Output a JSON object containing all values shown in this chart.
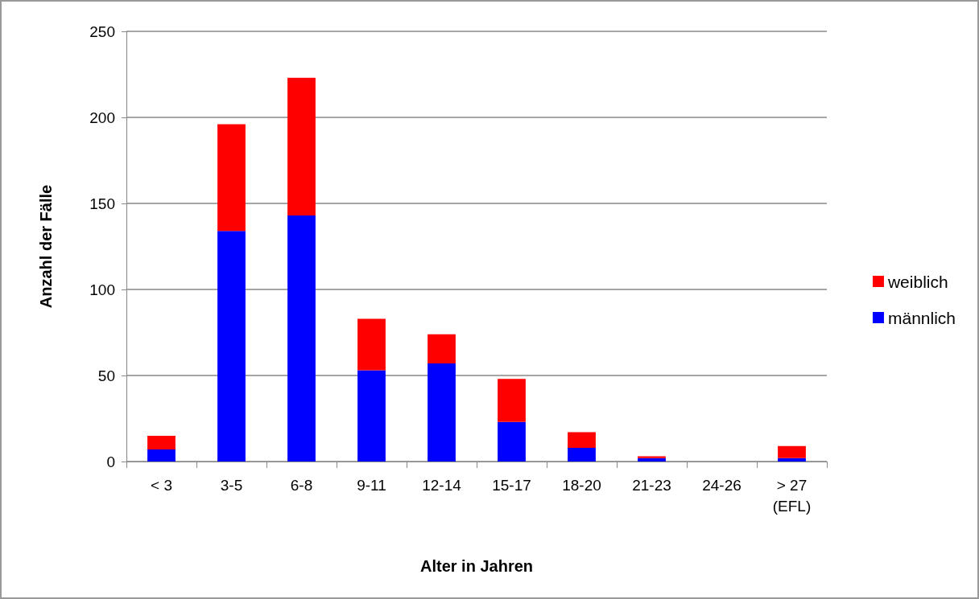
{
  "chart_data": {
    "type": "bar",
    "stacked": true,
    "xlabel": "Alter in Jahren",
    "ylabel": "Anzahl der Fälle",
    "categories": [
      "< 3",
      "3-5",
      "6-8",
      "9-11",
      "12-14",
      "15-17",
      "18-20",
      "21-23",
      "24-26",
      "> 27\n(EFL)"
    ],
    "series": [
      {
        "name": "männlich",
        "color": "#0000ff",
        "values": [
          7,
          134,
          143,
          53,
          57,
          23,
          8,
          2,
          0,
          2
        ]
      },
      {
        "name": "weiblich",
        "color": "#ff0000",
        "values": [
          8,
          62,
          80,
          30,
          17,
          25,
          9,
          1,
          0,
          7
        ]
      }
    ],
    "ylim": [
      0,
      250
    ],
    "yticks": [
      0,
      50,
      100,
      150,
      200,
      250
    ],
    "grid": "y",
    "legend": "right"
  }
}
